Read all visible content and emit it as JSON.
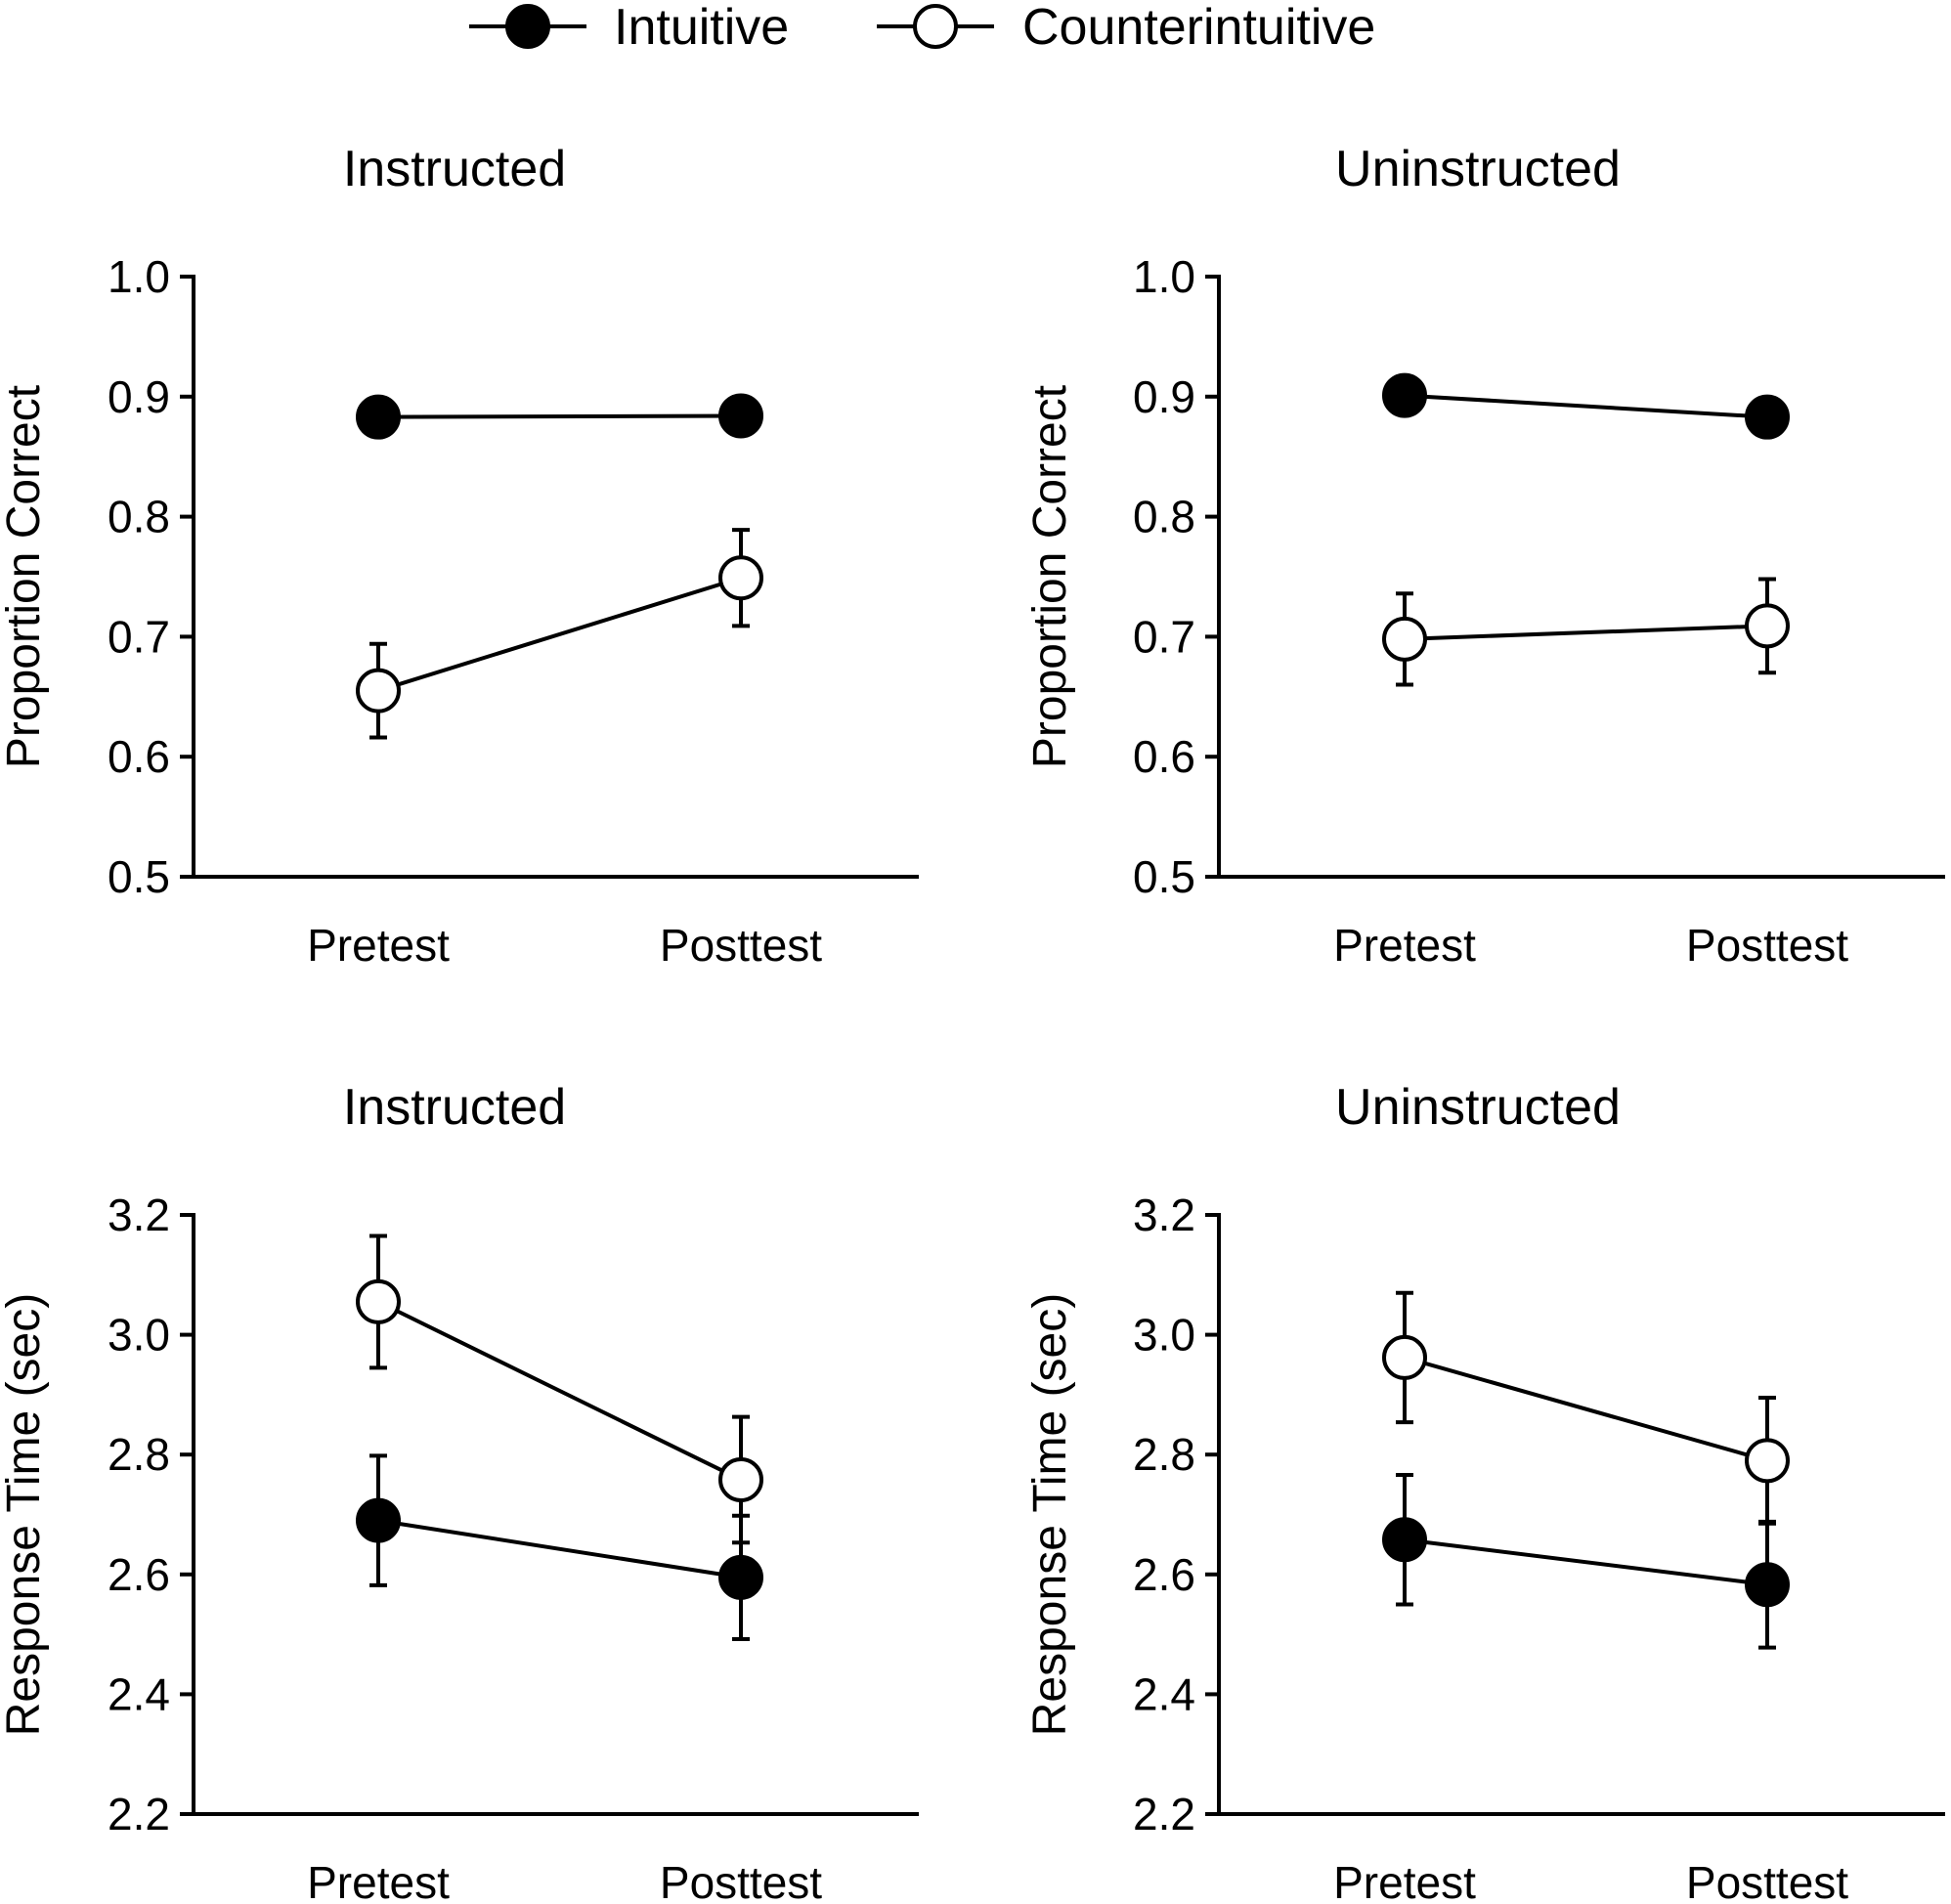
{
  "legend": {
    "series": [
      {
        "name": "Intuitive",
        "marker": "filled-circle"
      },
      {
        "name": "Counterintuitive",
        "marker": "open-circle"
      }
    ],
    "placement": "top-center"
  },
  "colors": {
    "ink": "#000000",
    "open_fill": "#ffffff"
  },
  "chart_data": [
    {
      "type": "line",
      "title": "Instructed",
      "xlabel": "",
      "ylabel": "Proportion Correct",
      "categories": [
        "Pretest",
        "Posttest"
      ],
      "ylim": [
        0.5,
        1.0
      ],
      "yticks": [
        0.5,
        0.6,
        0.7,
        0.8,
        0.9,
        1.0
      ],
      "ytick_labels": [
        "0.5",
        "0.6",
        "0.7",
        "0.8",
        "0.9",
        "1.0"
      ],
      "series": [
        {
          "name": "Intuitive",
          "values": [
            0.883,
            0.884
          ],
          "errors": [
            0.01,
            0.01
          ]
        },
        {
          "name": "Counterintuitive",
          "values": [
            0.655,
            0.749
          ],
          "errors": [
            0.039,
            0.04
          ]
        }
      ]
    },
    {
      "type": "line",
      "title": "Uninstructed",
      "xlabel": "",
      "ylabel": "Proportion Correct",
      "categories": [
        "Pretest",
        "Posttest"
      ],
      "ylim": [
        0.5,
        1.0
      ],
      "yticks": [
        0.5,
        0.6,
        0.7,
        0.8,
        0.9,
        1.0
      ],
      "ytick_labels": [
        "0.5",
        "0.6",
        "0.7",
        "0.8",
        "0.9",
        "1.0"
      ],
      "series": [
        {
          "name": "Intuitive",
          "values": [
            0.901,
            0.883
          ],
          "errors": [
            0.01,
            0.01
          ]
        },
        {
          "name": "Counterintuitive",
          "values": [
            0.698,
            0.709
          ],
          "errors": [
            0.038,
            0.039
          ]
        }
      ]
    },
    {
      "type": "line",
      "title": "Instructed",
      "xlabel": "",
      "ylabel": "Response Time (sec)",
      "categories": [
        "Pretest",
        "Posttest"
      ],
      "ylim": [
        2.2,
        3.2
      ],
      "yticks": [
        2.2,
        2.4,
        2.6,
        2.8,
        3.0,
        3.2
      ],
      "ytick_labels": [
        "2.2",
        "2.4",
        "2.6",
        "2.8",
        "3.0",
        "3.2"
      ],
      "series": [
        {
          "name": "Intuitive",
          "values": [
            2.69,
            2.595
          ],
          "errors": [
            0.108,
            0.103
          ]
        },
        {
          "name": "Counterintuitive",
          "values": [
            3.055,
            2.758
          ],
          "errors": [
            0.11,
            0.105
          ]
        }
      ]
    },
    {
      "type": "line",
      "title": "Uninstructed",
      "xlabel": "",
      "ylabel": "Response Time (sec)",
      "categories": [
        "Pretest",
        "Posttest"
      ],
      "ylim": [
        2.2,
        3.2
      ],
      "yticks": [
        2.2,
        2.4,
        2.6,
        2.8,
        3.0,
        3.2
      ],
      "ytick_labels": [
        "2.2",
        "2.4",
        "2.6",
        "2.8",
        "3.0",
        "3.2"
      ],
      "series": [
        {
          "name": "Intuitive",
          "values": [
            2.658,
            2.583
          ],
          "errors": [
            0.108,
            0.105
          ]
        },
        {
          "name": "Counterintuitive",
          "values": [
            2.962,
            2.79
          ],
          "errors": [
            0.108,
            0.105
          ]
        }
      ]
    }
  ]
}
